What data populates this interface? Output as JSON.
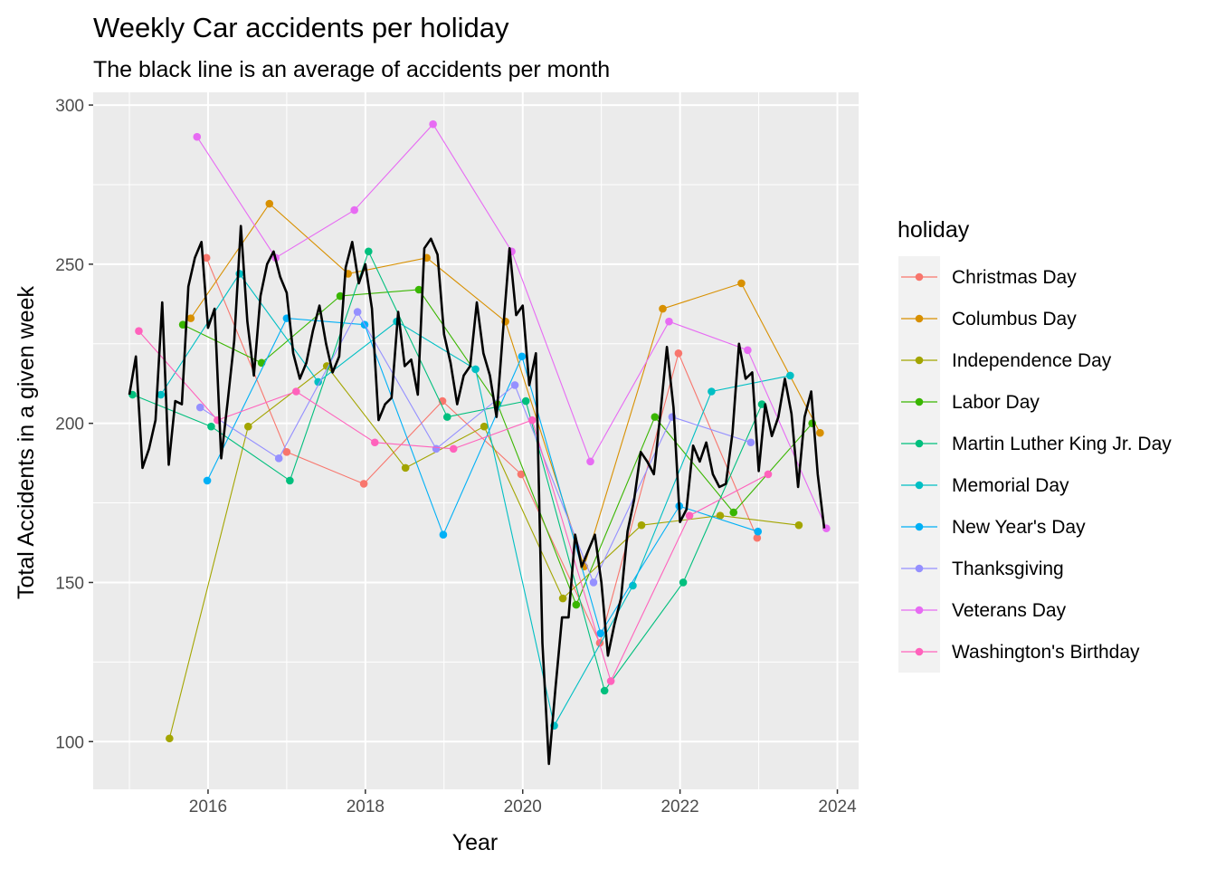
{
  "chart_data": {
    "type": "line",
    "title": "Weekly Car accidents per holiday",
    "subtitle": "The black line is an average of accidents per month",
    "xlabel": "Year",
    "ylabel": "Total Accidents in a given week",
    "xlim": [
      2014.54,
      2024.27
    ],
    "ylim": [
      85,
      304
    ],
    "x_ticks": [
      2016,
      2018,
      2020,
      2022,
      2024
    ],
    "x_minor_ticks": [
      2015,
      2017,
      2019,
      2021,
      2023
    ],
    "y_ticks": [
      100,
      150,
      200,
      250,
      300
    ],
    "y_minor_ticks": [
      125,
      175,
      225,
      275
    ],
    "grid": true,
    "legend": {
      "title": "holiday",
      "position": "right"
    },
    "series": [
      {
        "name": "Christmas Day",
        "color": "#F8766D",
        "points": [
          [
            2015.98,
            252
          ],
          [
            2017.0,
            191
          ],
          [
            2017.98,
            181
          ],
          [
            2018.98,
            207
          ],
          [
            2019.98,
            184
          ],
          [
            2020.98,
            131
          ],
          [
            2021.98,
            222
          ],
          [
            2022.98,
            164
          ]
        ]
      },
      {
        "name": "Columbus Day",
        "color": "#D89000",
        "points": [
          [
            2015.78,
            233
          ],
          [
            2016.78,
            269
          ],
          [
            2017.78,
            247
          ],
          [
            2018.78,
            252
          ],
          [
            2019.78,
            232
          ],
          [
            2020.78,
            155
          ],
          [
            2021.78,
            236
          ],
          [
            2022.78,
            244
          ],
          [
            2023.78,
            197
          ]
        ]
      },
      {
        "name": "Independence Day",
        "color": "#A3A500",
        "points": [
          [
            2015.51,
            101
          ],
          [
            2016.51,
            199
          ],
          [
            2017.51,
            218
          ],
          [
            2018.51,
            186
          ],
          [
            2019.51,
            199
          ],
          [
            2020.51,
            145
          ],
          [
            2021.51,
            168
          ],
          [
            2022.51,
            171
          ],
          [
            2023.51,
            168
          ]
        ]
      },
      {
        "name": "Labor Day",
        "color": "#39B600",
        "points": [
          [
            2015.68,
            231
          ],
          [
            2016.68,
            219
          ],
          [
            2017.68,
            240
          ],
          [
            2018.68,
            242
          ],
          [
            2019.68,
            206
          ],
          [
            2020.68,
            143
          ],
          [
            2021.68,
            202
          ],
          [
            2022.68,
            172
          ],
          [
            2023.68,
            200
          ]
        ]
      },
      {
        "name": "Martin Luther King Jr. Day",
        "color": "#00BF7D",
        "points": [
          [
            2015.04,
            209
          ],
          [
            2016.04,
            199
          ],
          [
            2017.04,
            182
          ],
          [
            2018.04,
            254
          ],
          [
            2019.04,
            202
          ],
          [
            2020.04,
            207
          ],
          [
            2021.04,
            116
          ],
          [
            2022.04,
            150
          ],
          [
            2023.04,
            206
          ]
        ]
      },
      {
        "name": "Memorial Day",
        "color": "#00BFC4",
        "points": [
          [
            2015.4,
            209
          ],
          [
            2016.4,
            247
          ],
          [
            2017.4,
            213
          ],
          [
            2018.4,
            232
          ],
          [
            2019.4,
            217
          ],
          [
            2020.4,
            105
          ],
          [
            2021.4,
            149
          ],
          [
            2022.4,
            210
          ],
          [
            2023.4,
            215
          ]
        ]
      },
      {
        "name": "New Year's Day",
        "color": "#00B0F6",
        "points": [
          [
            2015.99,
            182
          ],
          [
            2017.0,
            233
          ],
          [
            2017.99,
            231
          ],
          [
            2018.99,
            165
          ],
          [
            2019.99,
            221
          ],
          [
            2020.99,
            134
          ],
          [
            2021.99,
            174
          ],
          [
            2022.99,
            166
          ]
        ]
      },
      {
        "name": "Thanksgiving",
        "color": "#9590FF",
        "points": [
          [
            2015.9,
            205
          ],
          [
            2016.9,
            189
          ],
          [
            2017.9,
            235
          ],
          [
            2018.9,
            192
          ],
          [
            2019.9,
            212
          ],
          [
            2020.9,
            150
          ],
          [
            2021.9,
            202
          ],
          [
            2022.9,
            194
          ]
        ]
      },
      {
        "name": "Veterans Day",
        "color": "#E76BF3",
        "points": [
          [
            2015.86,
            290
          ],
          [
            2016.86,
            252
          ],
          [
            2017.86,
            267
          ],
          [
            2018.86,
            294
          ],
          [
            2019.86,
            254
          ],
          [
            2020.86,
            188
          ],
          [
            2021.86,
            232
          ],
          [
            2022.86,
            223
          ],
          [
            2023.86,
            167
          ]
        ]
      },
      {
        "name": "Washington's Birthday",
        "color": "#FF62BC",
        "points": [
          [
            2015.12,
            229
          ],
          [
            2016.12,
            201
          ],
          [
            2017.12,
            210
          ],
          [
            2018.12,
            194
          ],
          [
            2019.12,
            192
          ],
          [
            2020.12,
            201
          ],
          [
            2021.12,
            119
          ],
          [
            2022.12,
            171
          ],
          [
            2023.12,
            184
          ]
        ]
      }
    ],
    "average_line": {
      "color": "#000000",
      "points": [
        [
          2015.0,
          209
        ],
        [
          2015.083,
          221
        ],
        [
          2015.167,
          186
        ],
        [
          2015.25,
          192
        ],
        [
          2015.333,
          201
        ],
        [
          2015.417,
          238
        ],
        [
          2015.5,
          187
        ],
        [
          2015.583,
          207
        ],
        [
          2015.667,
          206
        ],
        [
          2015.75,
          243
        ],
        [
          2015.833,
          252
        ],
        [
          2015.917,
          257
        ],
        [
          2016.0,
          230
        ],
        [
          2016.083,
          236
        ],
        [
          2016.167,
          189
        ],
        [
          2016.25,
          207
        ],
        [
          2016.333,
          226
        ],
        [
          2016.417,
          262
        ],
        [
          2016.5,
          232
        ],
        [
          2016.583,
          215
        ],
        [
          2016.667,
          240
        ],
        [
          2016.75,
          250
        ],
        [
          2016.833,
          254
        ],
        [
          2016.917,
          246
        ],
        [
          2017.0,
          241
        ],
        [
          2017.083,
          222
        ],
        [
          2017.167,
          214
        ],
        [
          2017.25,
          219
        ],
        [
          2017.333,
          229
        ],
        [
          2017.417,
          237
        ],
        [
          2017.5,
          225
        ],
        [
          2017.583,
          216
        ],
        [
          2017.667,
          221
        ],
        [
          2017.75,
          249
        ],
        [
          2017.833,
          257
        ],
        [
          2017.917,
          244
        ],
        [
          2018.0,
          250
        ],
        [
          2018.083,
          236
        ],
        [
          2018.167,
          201
        ],
        [
          2018.25,
          206
        ],
        [
          2018.333,
          208
        ],
        [
          2018.417,
          235
        ],
        [
          2018.5,
          218
        ],
        [
          2018.583,
          220
        ],
        [
          2018.667,
          209
        ],
        [
          2018.75,
          255
        ],
        [
          2018.833,
          258
        ],
        [
          2018.917,
          253
        ],
        [
          2019.0,
          228
        ],
        [
          2019.083,
          219
        ],
        [
          2019.167,
          206
        ],
        [
          2019.25,
          215
        ],
        [
          2019.333,
          218
        ],
        [
          2019.417,
          238
        ],
        [
          2019.5,
          222
        ],
        [
          2019.583,
          215
        ],
        [
          2019.667,
          202
        ],
        [
          2019.75,
          229
        ],
        [
          2019.833,
          255
        ],
        [
          2019.917,
          234
        ],
        [
          2020.0,
          237
        ],
        [
          2020.083,
          212
        ],
        [
          2020.167,
          222
        ],
        [
          2020.25,
          131
        ],
        [
          2020.333,
          93
        ],
        [
          2020.417,
          117
        ],
        [
          2020.5,
          139
        ],
        [
          2020.583,
          139
        ],
        [
          2020.667,
          165
        ],
        [
          2020.75,
          155
        ],
        [
          2020.833,
          160
        ],
        [
          2020.917,
          165
        ],
        [
          2021.0,
          150
        ],
        [
          2021.083,
          127
        ],
        [
          2021.167,
          137
        ],
        [
          2021.25,
          145
        ],
        [
          2021.333,
          166
        ],
        [
          2021.417,
          176
        ],
        [
          2021.5,
          191
        ],
        [
          2021.583,
          188
        ],
        [
          2021.667,
          184
        ],
        [
          2021.75,
          203
        ],
        [
          2021.833,
          224
        ],
        [
          2021.917,
          205
        ],
        [
          2022.0,
          169
        ],
        [
          2022.083,
          173
        ],
        [
          2022.167,
          193
        ],
        [
          2022.25,
          188
        ],
        [
          2022.333,
          194
        ],
        [
          2022.417,
          184
        ],
        [
          2022.5,
          180
        ],
        [
          2022.583,
          181
        ],
        [
          2022.667,
          197
        ],
        [
          2022.75,
          225
        ],
        [
          2022.833,
          214
        ],
        [
          2022.917,
          216
        ],
        [
          2023.0,
          185
        ],
        [
          2023.083,
          206
        ],
        [
          2023.167,
          196
        ],
        [
          2023.25,
          202
        ],
        [
          2023.333,
          214
        ],
        [
          2023.417,
          203
        ],
        [
          2023.5,
          180
        ],
        [
          2023.583,
          202
        ],
        [
          2023.667,
          210
        ],
        [
          2023.75,
          184
        ],
        [
          2023.833,
          167
        ]
      ]
    }
  }
}
